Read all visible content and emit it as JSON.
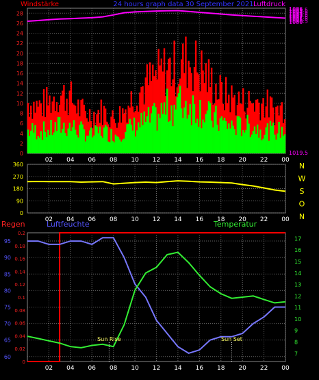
{
  "header": {
    "left_label": "Windstärke",
    "center_label": "24 hours graph data 30 September 2021",
    "right_label": "Luftdruck"
  },
  "bottom_labels": {
    "left": "Regen",
    "middle": "Luftfeuchte",
    "right": "Temperatur"
  },
  "compass_letters": [
    "N",
    "W",
    "S",
    "O",
    "N"
  ],
  "colors": {
    "wind_gust": "#ff0000",
    "wind_avg": "#00ff00",
    "pressure": "#ff00ff",
    "direction": "#ffff00",
    "rain": "#ff0000",
    "humidity": "#7777ff",
    "temperature": "#33ee33",
    "axes": "#ffffff",
    "grid": "#666666"
  },
  "chart_data": [
    {
      "type": "bar",
      "title": "24 hours graph data 30 September 2021",
      "x_ticks": [
        "02",
        "04",
        "06",
        "08",
        "10",
        "12",
        "14",
        "16",
        "18",
        "20",
        "22",
        "00"
      ],
      "left_axis": {
        "label": "Windstärke",
        "ticks": [
          0,
          2,
          4,
          6,
          8,
          10,
          12,
          14,
          16,
          18,
          20,
          22,
          24,
          26,
          28
        ],
        "range": [
          0,
          29
        ]
      },
      "right_axis": {
        "label": "Luftdruck",
        "ticks": [
          "1019.5",
          "1080",
          "1080.5",
          "1081",
          "1081.5",
          "1082",
          "1082.5",
          "1083",
          "1083.5",
          "1084",
          "1084.5",
          "1085",
          "1085.5",
          "1086"
        ],
        "range": [
          1019.2,
          1086.3
        ]
      },
      "hours": [
        0,
        1,
        2,
        3,
        4,
        5,
        6,
        7,
        8,
        9,
        10,
        11,
        12,
        13,
        14,
        15,
        16,
        17,
        18,
        19,
        20,
        21,
        22,
        23,
        24
      ],
      "series": [
        {
          "name": "Windstärke gust",
          "values": [
            12,
            11,
            12,
            14,
            13,
            10,
            9,
            10,
            8,
            10,
            14,
            16,
            18,
            20,
            20,
            22,
            20,
            17,
            14,
            13,
            12,
            12,
            12,
            10,
            11
          ]
        },
        {
          "name": "Windstärke avg",
          "values": [
            5,
            5,
            5,
            6,
            6,
            5,
            4,
            5,
            4,
            5,
            6,
            7,
            8,
            10,
            11,
            11,
            10,
            8,
            7,
            6,
            6,
            6,
            5,
            5,
            5
          ]
        },
        {
          "name": "Luftdruck",
          "values": [
            1080.3,
            1080.6,
            1081.0,
            1081.3,
            1081.5,
            1081.7,
            1081.9,
            1082.3,
            1083.2,
            1084.2,
            1084.6,
            1084.8,
            1085.0,
            1085.1,
            1085.2,
            1084.8,
            1084.4,
            1084.0,
            1083.6,
            1083.2,
            1082.9,
            1082.6,
            1082.3,
            1082.0,
            1081.7
          ]
        }
      ]
    },
    {
      "type": "line",
      "x_ticks": [
        "02",
        "04",
        "06",
        "08",
        "10",
        "12",
        "14",
        "16",
        "18",
        "20",
        "22",
        "00"
      ],
      "left_axis": {
        "ticks": [
          0,
          90,
          180,
          270,
          360
        ],
        "range": [
          0,
          360
        ]
      },
      "right_axis": {
        "ticks": [
          "N",
          "W",
          "S",
          "O",
          "N"
        ]
      },
      "hours": [
        0,
        1,
        2,
        3,
        4,
        5,
        6,
        7,
        8,
        9,
        10,
        11,
        12,
        13,
        14,
        15,
        16,
        17,
        18,
        19,
        20,
        21,
        22,
        23,
        24
      ],
      "series": [
        {
          "name": "Windrichtung",
          "values": [
            232,
            233,
            232,
            232,
            232,
            228,
            230,
            232,
            215,
            220,
            225,
            228,
            225,
            232,
            238,
            235,
            230,
            228,
            225,
            222,
            210,
            200,
            185,
            170,
            160
          ]
        }
      ]
    },
    {
      "type": "line",
      "x_ticks": [
        "02",
        "04",
        "06",
        "08",
        "10",
        "12",
        "14",
        "16",
        "18",
        "20",
        "22",
        "00"
      ],
      "left_axis_humidity": {
        "label": "Luftfeuchte",
        "ticks": [
          60,
          65,
          70,
          75,
          80,
          85,
          90,
          95
        ],
        "range": [
          58.5,
          97.5
        ]
      },
      "left_axis_rain": {
        "label": "Regen",
        "ticks": [
          0,
          0.02,
          0.04,
          0.06,
          0.08,
          0.1,
          0.12,
          0.14,
          0.16,
          0.18,
          0.2
        ],
        "range": [
          0,
          0.2
        ]
      },
      "right_axis_temperature": {
        "label": "Temperatur",
        "ticks": [
          7,
          8,
          9,
          10,
          11,
          12,
          13,
          14,
          15,
          16,
          17
        ],
        "range": [
          6.3,
          17.5
        ]
      },
      "annotations": [
        {
          "text": "Sun Rise",
          "hour": 7.6
        },
        {
          "text": "Sun Set",
          "hour": 19.0
        }
      ],
      "hours": [
        0,
        1,
        2,
        3,
        4,
        5,
        6,
        7,
        8,
        9,
        10,
        11,
        12,
        13,
        14,
        15,
        16,
        17,
        18,
        19,
        20,
        21,
        22,
        23,
        24
      ],
      "series": [
        {
          "name": "Luftfeuchte",
          "values": [
            95,
            95,
            94,
            94,
            95,
            95,
            94,
            96,
            96,
            90,
            82,
            78,
            71,
            67,
            63,
            61,
            62,
            65,
            66,
            66,
            67,
            70,
            72,
            75,
            75
          ]
        },
        {
          "name": "Temperatur",
          "values": [
            8.5,
            8.3,
            8.1,
            7.9,
            7.6,
            7.5,
            7.7,
            7.8,
            7.6,
            9.5,
            12.5,
            14.0,
            14.5,
            15.6,
            15.8,
            14.9,
            13.8,
            12.8,
            12.2,
            11.8,
            11.9,
            12.0,
            11.7,
            11.4,
            11.5
          ]
        },
        {
          "name": "Regen",
          "values": [
            0,
            0,
            0,
            0.2,
            0.2,
            0.2,
            0.2,
            0.2,
            0.2,
            0.2,
            0.2,
            0.2,
            0.2,
            0.2,
            0.2,
            0.2,
            0.2,
            0.2,
            0.2,
            0.2,
            0.2,
            0.2,
            0.2,
            0.2,
            0.2
          ]
        }
      ]
    }
  ]
}
